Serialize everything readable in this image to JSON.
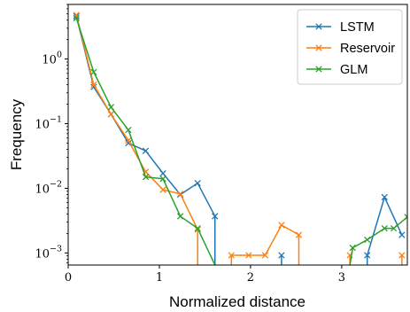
{
  "chart_data": {
    "type": "line",
    "xlabel": "Normalized distance",
    "ylabel": "Frequency",
    "xlim": [
      0.0,
      3.72
    ],
    "ylim": [
      0.00065,
      7.0
    ],
    "yscale": "log",
    "grid": false,
    "legend_position": "top-right",
    "marker": "x",
    "x_ticks": [
      {
        "value": 0,
        "label": "0"
      },
      {
        "value": 1,
        "label": "1"
      },
      {
        "value": 2,
        "label": "2"
      },
      {
        "value": 3,
        "label": "3"
      }
    ],
    "y_ticks": [
      {
        "value": 0.001,
        "base": "10",
        "exp": "−3"
      },
      {
        "value": 0.01,
        "base": "10",
        "exp": "−2"
      },
      {
        "value": 0.1,
        "base": "10",
        "exp": "−1"
      },
      {
        "value": 1,
        "base": "10",
        "exp": "0"
      }
    ],
    "series": [
      {
        "name": "LSTM",
        "color": "#1f77b4",
        "points": [
          [
            0.09,
            4.6
          ],
          [
            0.28,
            0.37
          ],
          [
            0.47,
            0.14
          ],
          [
            0.66,
            0.05
          ],
          [
            0.85,
            0.038
          ],
          [
            1.04,
            0.017
          ],
          [
            1.23,
            0.008
          ],
          [
            1.42,
            0.012
          ],
          [
            1.61,
            0.0037
          ],
          [
            1.61,
            0.00065
          ],
          null,
          [
            2.34,
            0.00065
          ],
          [
            2.34,
            0.00092
          ],
          [
            2.34,
            0.00065
          ],
          null,
          [
            3.28,
            0.00065
          ],
          [
            3.28,
            0.00092
          ],
          [
            3.47,
            0.0073
          ],
          [
            3.66,
            0.0019
          ]
        ]
      },
      {
        "name": "Reservoir",
        "color": "#ff7f0e",
        "points": [
          [
            0.09,
            4.8
          ],
          [
            0.28,
            0.4
          ],
          [
            0.47,
            0.14
          ],
          [
            0.66,
            0.055
          ],
          [
            0.85,
            0.018
          ],
          [
            1.04,
            0.0095
          ],
          [
            1.23,
            0.0082
          ],
          [
            1.42,
            0.0023
          ],
          [
            1.42,
            0.00065
          ],
          null,
          [
            1.79,
            0.00065
          ],
          [
            1.79,
            0.00092
          ],
          [
            1.98,
            0.00092
          ],
          [
            2.16,
            0.00092
          ],
          [
            2.34,
            0.0027
          ],
          [
            2.53,
            0.0019
          ],
          [
            2.53,
            0.00065
          ],
          null,
          [
            3.09,
            0.00065
          ],
          [
            3.09,
            0.00092
          ],
          [
            3.09,
            0.00065
          ],
          null,
          [
            3.66,
            0.00065
          ],
          [
            3.66,
            0.00092
          ],
          [
            3.66,
            0.00065
          ]
        ]
      },
      {
        "name": "GLM",
        "color": "#2ca02c",
        "points": [
          [
            0.09,
            4.3
          ],
          [
            0.28,
            0.63
          ],
          [
            0.47,
            0.18
          ],
          [
            0.66,
            0.08
          ],
          [
            0.85,
            0.015
          ],
          [
            1.04,
            0.014
          ],
          [
            1.23,
            0.0037
          ],
          [
            1.42,
            0.0024
          ],
          [
            1.61,
            0.00065
          ],
          null,
          [
            3.09,
            0.00065
          ],
          [
            3.12,
            0.0012
          ],
          [
            3.28,
            0.0016
          ],
          [
            3.47,
            0.0024
          ],
          [
            3.57,
            0.0024
          ],
          [
            3.72,
            0.0036
          ]
        ]
      }
    ]
  }
}
